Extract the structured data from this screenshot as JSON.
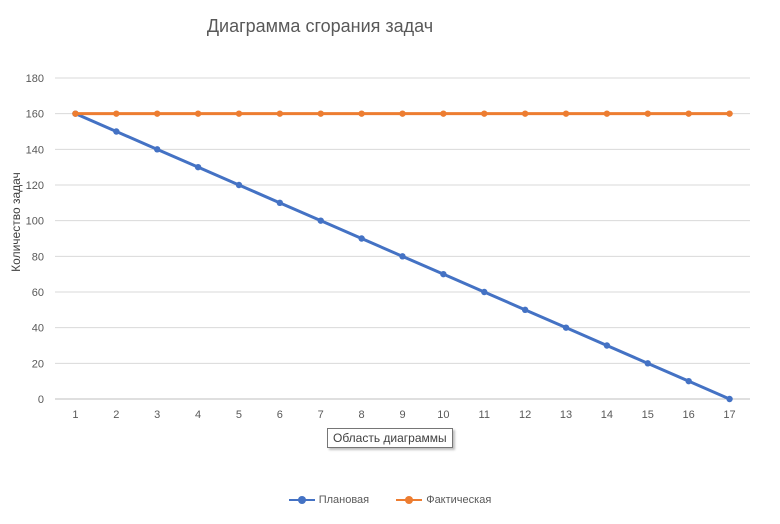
{
  "chart_data": {
    "type": "line",
    "title": "Диаграмма сгорания задач",
    "xlabel": "",
    "ylabel": "Количество задач",
    "x": [
      1,
      2,
      3,
      4,
      5,
      6,
      7,
      8,
      9,
      10,
      11,
      12,
      13,
      14,
      15,
      16,
      17
    ],
    "ylim": [
      0,
      180
    ],
    "yticks": [
      0,
      20,
      40,
      60,
      80,
      100,
      120,
      140,
      160,
      180
    ],
    "grid": true,
    "legend": "bottom",
    "series": [
      {
        "name": "Плановая",
        "color": "#4472C4",
        "values": [
          160,
          150,
          140,
          130,
          120,
          110,
          100,
          90,
          80,
          70,
          60,
          50,
          40,
          30,
          20,
          10,
          0
        ]
      },
      {
        "name": "Фактическая",
        "color": "#ED7D31",
        "values": [
          160,
          160,
          160,
          160,
          160,
          160,
          160,
          160,
          160,
          160,
          160,
          160,
          160,
          160,
          160,
          160,
          160
        ]
      }
    ]
  },
  "tooltip": {
    "text": "Область диаграммы"
  }
}
